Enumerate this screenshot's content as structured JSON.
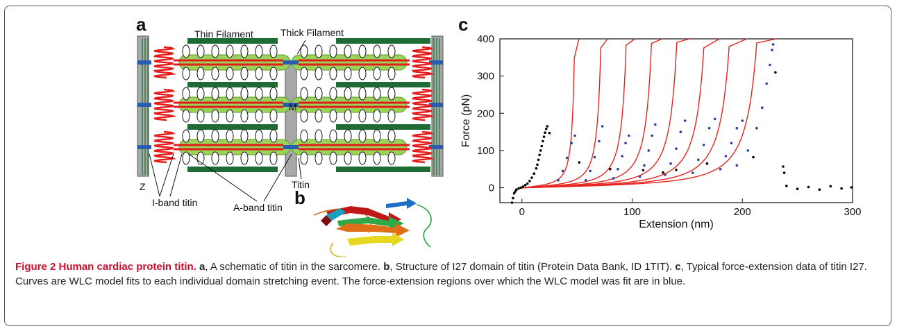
{
  "panel_a": {
    "letter": "a",
    "labels": {
      "thin_filament": "Thin Filament",
      "thick_filament": "Thick Filament",
      "m_line": "M",
      "z_disk": "Z",
      "titin": "Titin",
      "i_band_titin": "I-band titin",
      "a_band_titin": "A-band titin"
    },
    "colors": {
      "thin": "#1e6b36",
      "thick": "#9ad35a",
      "titin": "#e31b1b",
      "disk": "#a8a8a8",
      "connector": "#2a5db0"
    }
  },
  "panel_b": {
    "letter": "b"
  },
  "panel_c": {
    "letter": "c"
  },
  "chart_data": {
    "type": "scatter",
    "xlabel": "Extension (nm)",
    "ylabel": "Force (pN)",
    "xlim": [
      -20,
      300
    ],
    "ylim": [
      -40,
      400
    ],
    "xticks": [
      0,
      100,
      200,
      300
    ],
    "yticks": [
      0,
      100,
      200,
      300,
      400
    ],
    "grid": false,
    "series": [
      {
        "name": "",
        "color": "#000000",
        "points": [
          [
            -9,
            -40
          ],
          [
            -8,
            -28
          ],
          [
            -7,
            -15
          ],
          [
            -6,
            -10
          ],
          [
            -5,
            -5
          ],
          [
            -3,
            -2
          ],
          [
            -1,
            0
          ],
          [
            1,
            3
          ],
          [
            3,
            7
          ],
          [
            5,
            11
          ],
          [
            7,
            18
          ],
          [
            9,
            27
          ],
          [
            11,
            38
          ],
          [
            13,
            52
          ],
          [
            14,
            62
          ],
          [
            15,
            75
          ],
          [
            16,
            88
          ],
          [
            17,
            100
          ],
          [
            18,
            112
          ],
          [
            19,
            125
          ],
          [
            20,
            137
          ],
          [
            21,
            148
          ],
          [
            22,
            158
          ],
          [
            23,
            165
          ],
          [
            25,
            147
          ],
          [
            52,
            68
          ],
          [
            80,
            50
          ],
          [
            110,
            47
          ],
          [
            128,
            41
          ],
          [
            140,
            48
          ],
          [
            168,
            65
          ],
          [
            210,
            82
          ],
          [
            230,
            310
          ],
          [
            237,
            57
          ],
          [
            238,
            40
          ],
          [
            240,
            5
          ],
          [
            250,
            -3
          ],
          [
            260,
            2
          ],
          [
            270,
            -5
          ],
          [
            280,
            4
          ],
          [
            290,
            -2
          ],
          [
            299,
            1
          ]
        ]
      },
      {
        "name": "",
        "color": "#2a3fa0",
        "points": [
          [
            33,
            20
          ],
          [
            37,
            45
          ],
          [
            41,
            80
          ],
          [
            45,
            120
          ],
          [
            48,
            140
          ],
          [
            58,
            20
          ],
          [
            62,
            45
          ],
          [
            66,
            82
          ],
          [
            70,
            125
          ],
          [
            73,
            165
          ],
          [
            83,
            25
          ],
          [
            87,
            50
          ],
          [
            91,
            85
          ],
          [
            94,
            120
          ],
          [
            97,
            140
          ],
          [
            107,
            30
          ],
          [
            111,
            60
          ],
          [
            115,
            100
          ],
          [
            118,
            140
          ],
          [
            121,
            170
          ],
          [
            130,
            35
          ],
          [
            135,
            65
          ],
          [
            140,
            105
          ],
          [
            144,
            150
          ],
          [
            148,
            180
          ],
          [
            155,
            40
          ],
          [
            160,
            75
          ],
          [
            165,
            115
          ],
          [
            170,
            160
          ],
          [
            175,
            185
          ],
          [
            180,
            50
          ],
          [
            185,
            85
          ],
          [
            190,
            120
          ],
          [
            195,
            160
          ],
          [
            200,
            180
          ],
          [
            195,
            60
          ],
          [
            205,
            100
          ],
          [
            213,
            160
          ],
          [
            218,
            215
          ],
          [
            222,
            280
          ],
          [
            225,
            330
          ],
          [
            227,
            370
          ],
          [
            228,
            385
          ]
        ]
      }
    ],
    "wlc_fits": {
      "color": "#e8231e",
      "contour_lengths_nm": [
        52,
        78,
        103,
        128,
        153,
        180,
        205,
        232
      ]
    }
  },
  "caption": {
    "figure_title": "Figure 2 Human cardiac protein titin.",
    "a_letter": "a",
    "a_text": ", A schematic of titin in the sarcomere.",
    "b_letter": "b",
    "b_text": ", Structure of I27 domain of titin (Protein Data Bank, ID 1TIT).",
    "c_letter": "c",
    "c_text": ", Typical force-extension data of titin I27. Curves are WLC model fits to each individual domain stretching event. The force-extension regions over which the WLC model was fit are in blue."
  }
}
